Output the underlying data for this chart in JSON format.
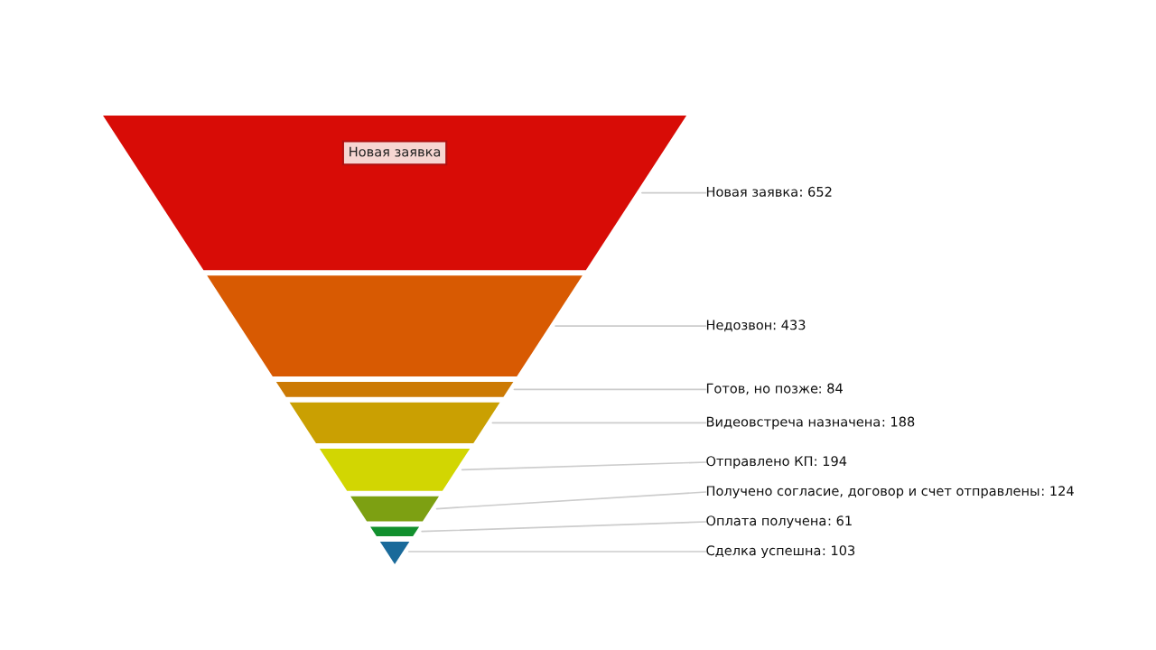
{
  "chart_data": {
    "type": "other",
    "categories": [
      "Новая заявка",
      "Недозвон",
      "Готов, но позже",
      "Видеовстреча назначена",
      "Отправлено КП",
      "Получено согласие, договор и счет отправлены",
      "Оплата получена",
      "Сделка успешна"
    ],
    "values": [
      652,
      433,
      84,
      188,
      194,
      124,
      61,
      103
    ],
    "value_labels": [
      ": 652",
      ": 433",
      ": 84",
      ": 188",
      ": 194",
      ": 124",
      ": 61",
      ": 103"
    ],
    "colors": [
      "#d80c06",
      "#d85a02",
      "#cc7a04",
      "#caa002",
      "#d2d602",
      "#7da012",
      "#12902e",
      "#1a6a9a"
    ],
    "annotations": [
      "Новая заявка"
    ]
  }
}
